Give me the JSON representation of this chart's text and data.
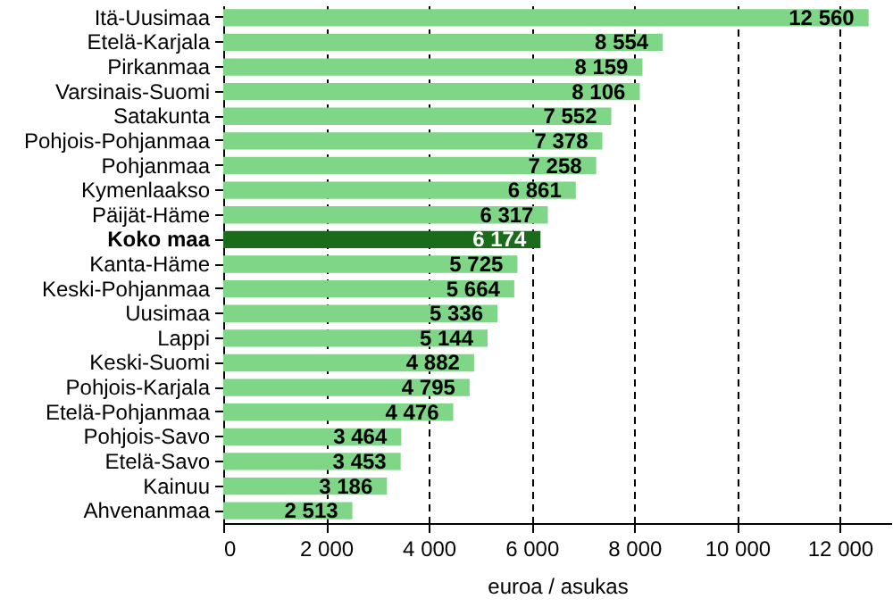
{
  "chart_data": {
    "type": "bar",
    "orientation": "horizontal",
    "xlabel": "euroa / asukas",
    "categories": [
      "Itä-Uusimaa",
      "Etelä-Karjala",
      "Pirkanmaa",
      "Varsinais-Suomi",
      "Satakunta",
      "Pohjois-Pohjanmaa",
      "Pohjanmaa",
      "Kymenlaakso",
      "Päijät-Häme",
      "Koko maa",
      "Kanta-Häme",
      "Keski-Pohjanmaa",
      "Uusimaa",
      "Lappi",
      "Keski-Suomi",
      "Pohjois-Karjala",
      "Etelä-Pohjanmaa",
      "Pohjois-Savo",
      "Etelä-Savo",
      "Kainuu",
      "Ahvenanmaa"
    ],
    "values": [
      12560,
      8554,
      8159,
      8106,
      7552,
      7378,
      7258,
      6861,
      6317,
      6174,
      5725,
      5664,
      5336,
      5144,
      4882,
      4795,
      4476,
      3464,
      3453,
      3186,
      2513
    ],
    "value_labels": [
      "12 560",
      "8 554",
      "8 159",
      "8 106",
      "7 552",
      "7 378",
      "7 258",
      "6 861",
      "6 317",
      "6 174",
      "5 725",
      "5 664",
      "5 336",
      "5 144",
      "4 882",
      "4 795",
      "4 476",
      "3 464",
      "3 453",
      "3 186",
      "2 513"
    ],
    "colors": [
      "#7fd687",
      "#7fd687",
      "#7fd687",
      "#7fd687",
      "#7fd687",
      "#7fd687",
      "#7fd687",
      "#7fd687",
      "#7fd687",
      "#1a6b1a",
      "#7fd687",
      "#7fd687",
      "#7fd687",
      "#7fd687",
      "#7fd687",
      "#7fd687",
      "#7fd687",
      "#7fd687",
      "#7fd687",
      "#7fd687",
      "#7fd687"
    ],
    "xlim": [
      0,
      13000
    ],
    "xticks": [
      0,
      {
        "value": 2000,
        "label": "2 000"
      },
      {
        "value": 4000,
        "label": "4 000"
      },
      {
        "value": 6000,
        "label": "6 000"
      },
      {
        "value": 8000,
        "label": "8 000"
      },
      {
        "value": 10000,
        "label": "10 000"
      },
      {
        "value": 12000,
        "label": "12 000"
      }
    ],
    "grid": "x"
  }
}
